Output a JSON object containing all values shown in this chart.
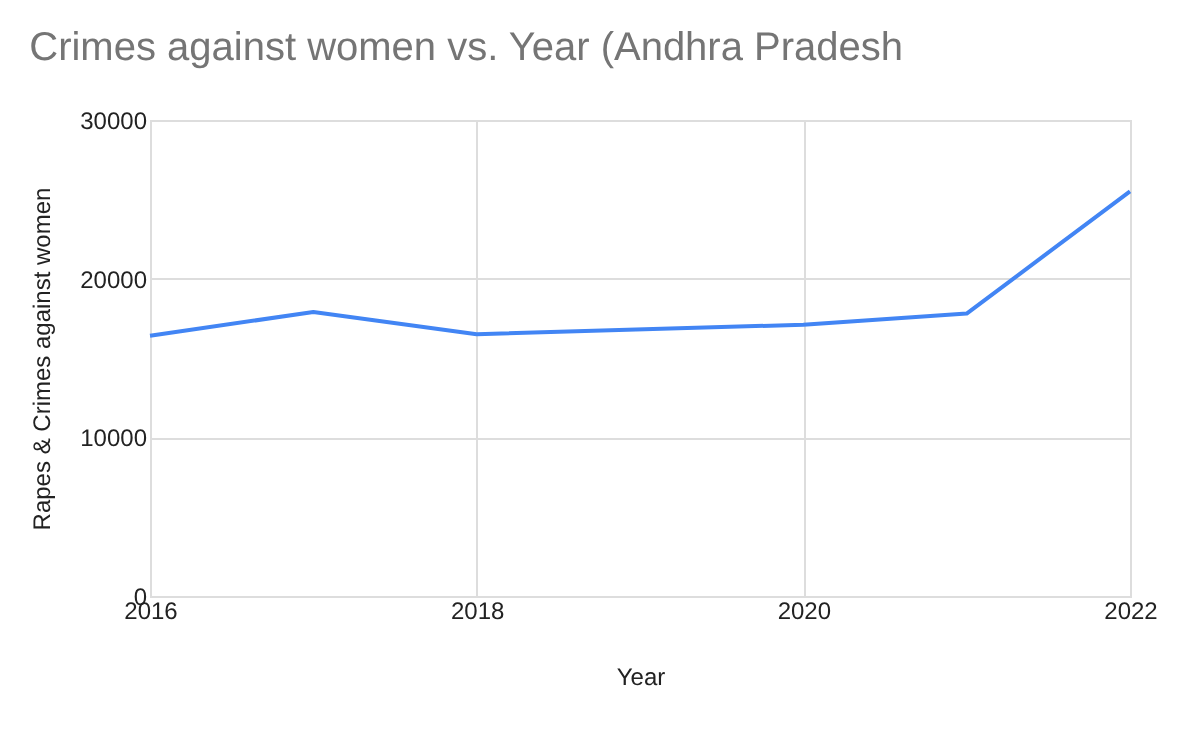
{
  "chart_data": {
    "type": "line",
    "title": "Crimes against women vs. Year (Andhra Pradesh",
    "xlabel": "Year",
    "ylabel": "Rapes & Crimes against women",
    "x": [
      2016,
      2017,
      2018,
      2020,
      2021,
      2022
    ],
    "series": [
      {
        "color": "#4285f4",
        "values": [
          16400,
          17900,
          16500,
          17100,
          17800,
          25500
        ]
      }
    ],
    "xlim": [
      2016,
      2022
    ],
    "xticks": [
      2016,
      2018,
      2020,
      2022
    ],
    "ylim": [
      0,
      30000
    ],
    "yticks": [
      0,
      10000,
      20000,
      30000
    ],
    "grid": true,
    "legend": false,
    "marker": "none",
    "line_style": "solid"
  }
}
